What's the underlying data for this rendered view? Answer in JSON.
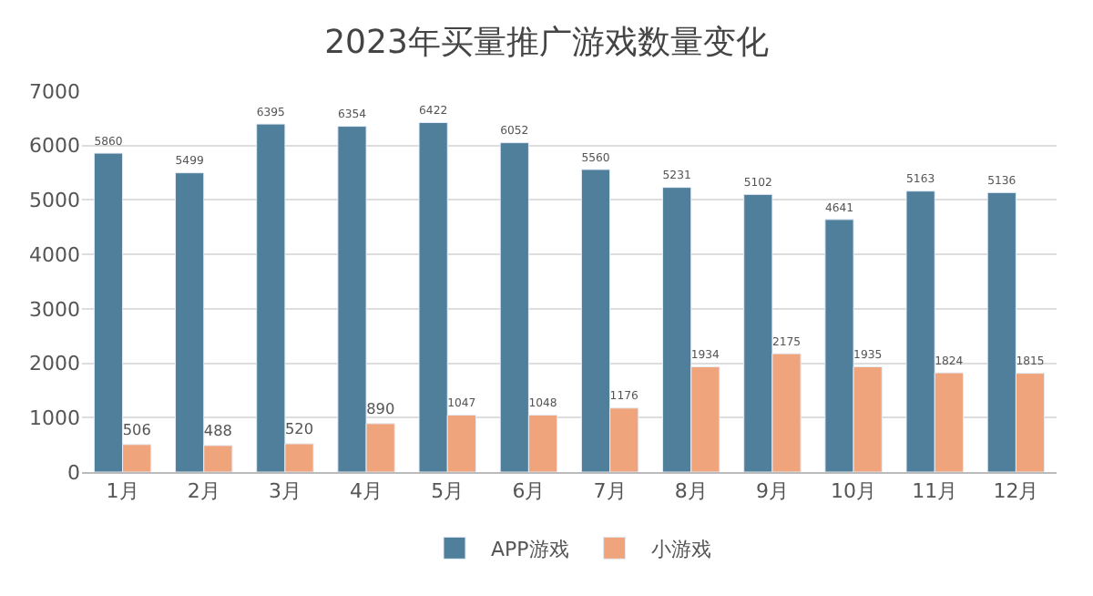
{
  "chart_data": {
    "type": "bar",
    "title": "2023年买量推广游戏数量变化",
    "categories": [
      "1月",
      "2月",
      "3月",
      "4月",
      "5月",
      "6月",
      "7月",
      "8月",
      "9月",
      "10月",
      "11月",
      "12月"
    ],
    "series": [
      {
        "name": "APP游戏",
        "color": "#4f7f9b",
        "values": [
          5860,
          5499,
          6395,
          6354,
          6422,
          6052,
          5560,
          5231,
          5102,
          4641,
          5163,
          5136
        ]
      },
      {
        "name": "小游戏",
        "color": "#f0a47c",
        "values": [
          506,
          488,
          520,
          890,
          1047,
          1048,
          1176,
          1934,
          2175,
          1935,
          1824,
          1815
        ]
      }
    ],
    "ylim": [
      0,
      7000
    ],
    "yticks": [
      0,
      1000,
      2000,
      3000,
      4000,
      5000,
      6000,
      7000
    ],
    "grid": "y",
    "legend": "bottom",
    "data_labels": true
  }
}
